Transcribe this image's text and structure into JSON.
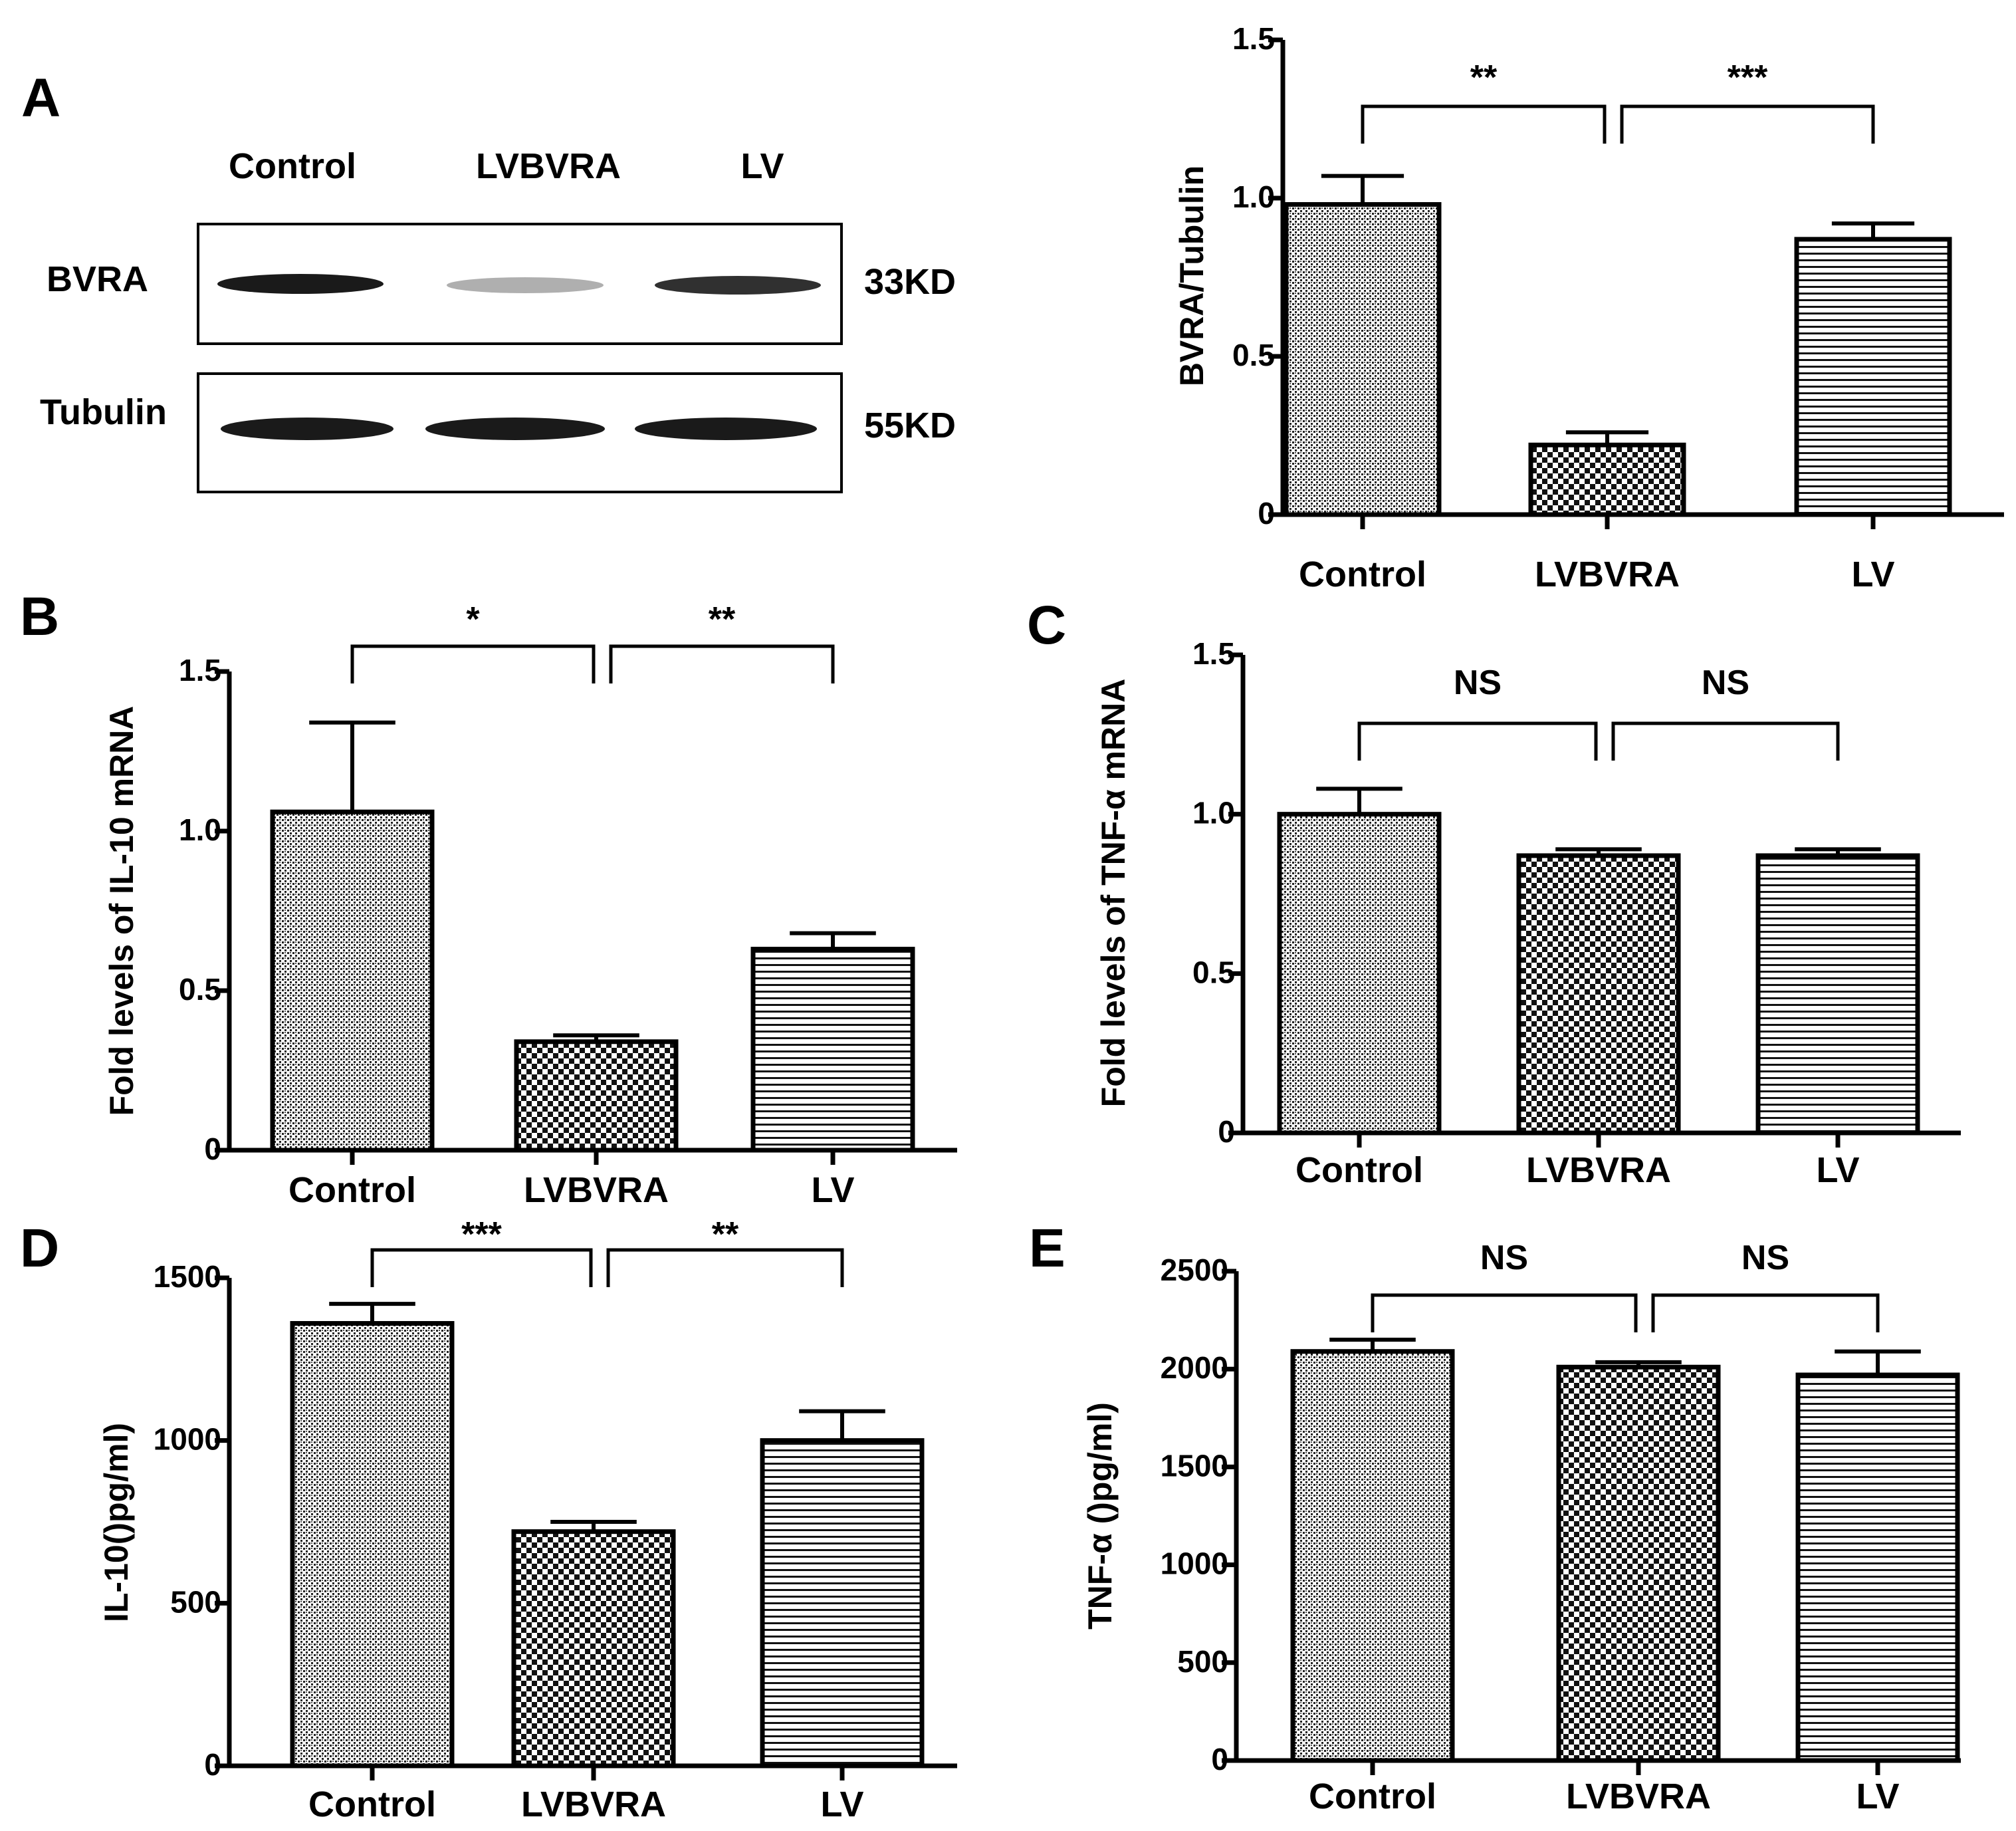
{
  "panel_a": {
    "letter": "A",
    "lanes": [
      "Control",
      "LVBVRA",
      "LV"
    ],
    "rows": [
      {
        "protein": "BVRA",
        "size": "33KD",
        "band_intensity": [
          1.0,
          0.35,
          0.9
        ]
      },
      {
        "protein": "Tubulin",
        "size": "55KD",
        "band_intensity": [
          1.0,
          1.0,
          1.0
        ]
      }
    ]
  },
  "colors": {
    "ink": "#000000",
    "background": "#ffffff",
    "band": "#1a1a1a"
  },
  "chart_data": [
    {
      "id": "A-quant",
      "letter": "",
      "type": "bar",
      "categories": [
        "Control",
        "LVBVRA",
        "LV"
      ],
      "patterns": [
        "dots",
        "checker",
        "hlines"
      ],
      "values": [
        0.98,
        0.22,
        0.87
      ],
      "errors": [
        0.09,
        0.04,
        0.05
      ],
      "ylabel": "BVRA/Tubulin",
      "ylim": [
        0,
        1.5
      ],
      "yticks": [
        0,
        0.5,
        1.0,
        1.5
      ],
      "ytick_labels": [
        "0",
        "0.5",
        "1.0",
        "1.5"
      ],
      "comparisons": [
        {
          "from": 0,
          "to": 1,
          "label": "**"
        },
        {
          "from": 1,
          "to": 2,
          "label": "***"
        }
      ]
    },
    {
      "id": "B",
      "letter": "B",
      "type": "bar",
      "categories": [
        "Control",
        "LVBVRA",
        "LV"
      ],
      "patterns": [
        "dots",
        "checker",
        "hlines"
      ],
      "values": [
        1.06,
        0.34,
        0.63
      ],
      "errors": [
        0.28,
        0.02,
        0.05
      ],
      "ylabel": "Fold levels of IL-10 mRNA",
      "ylim": [
        0,
        1.5
      ],
      "yticks": [
        0,
        0.5,
        1.0,
        1.5
      ],
      "ytick_labels": [
        "0",
        "0.5",
        "1.0",
        "1.5"
      ],
      "comparisons": [
        {
          "from": 0,
          "to": 1,
          "label": "*"
        },
        {
          "from": 1,
          "to": 2,
          "label": "**"
        }
      ]
    },
    {
      "id": "C",
      "letter": "C",
      "type": "bar",
      "categories": [
        "Control",
        "LVBVRA",
        "LV"
      ],
      "patterns": [
        "dots",
        "checker",
        "hlines"
      ],
      "values": [
        1.0,
        0.87,
        0.87
      ],
      "errors": [
        0.08,
        0.02,
        0.02
      ],
      "ylabel": "Fold levels of TNF-α  mRNA",
      "ylim": [
        0,
        1.5
      ],
      "yticks": [
        0,
        0.5,
        1.0,
        1.5
      ],
      "ytick_labels": [
        "0",
        "0.5",
        "1.0",
        "1.5"
      ],
      "comparisons": [
        {
          "from": 0,
          "to": 1,
          "label": "NS"
        },
        {
          "from": 1,
          "to": 2,
          "label": "NS"
        }
      ]
    },
    {
      "id": "D",
      "letter": "D",
      "type": "bar",
      "categories": [
        "Control",
        "LVBVRA",
        "LV"
      ],
      "patterns": [
        "dots",
        "checker",
        "hlines"
      ],
      "values": [
        1360,
        720,
        1000
      ],
      "errors": [
        60,
        30,
        90
      ],
      "ylabel": "IL-10()pg/ml)",
      "ylim": [
        0,
        1500
      ],
      "yticks": [
        0,
        500,
        1000,
        1500
      ],
      "ytick_labels": [
        "0",
        "500",
        "1000",
        "1500"
      ],
      "comparisons": [
        {
          "from": 0,
          "to": 1,
          "label": "***"
        },
        {
          "from": 1,
          "to": 2,
          "label": "**"
        }
      ]
    },
    {
      "id": "E",
      "letter": "E",
      "type": "bar",
      "categories": [
        "Control",
        "LVBVRA",
        "LV"
      ],
      "patterns": [
        "dots",
        "checker",
        "hlines"
      ],
      "values": [
        2090,
        2010,
        1970
      ],
      "errors": [
        60,
        25,
        120
      ],
      "ylabel": "TNF-α ()pg/ml)",
      "ylim": [
        0,
        2500
      ],
      "yticks": [
        0,
        500,
        1000,
        1500,
        2000,
        2500
      ],
      "ytick_labels": [
        "0",
        "500",
        "1000",
        "1500",
        "2000",
        "2500"
      ],
      "comparisons": [
        {
          "from": 0,
          "to": 1,
          "label": "NS"
        },
        {
          "from": 1,
          "to": 2,
          "label": "NS"
        }
      ]
    }
  ]
}
